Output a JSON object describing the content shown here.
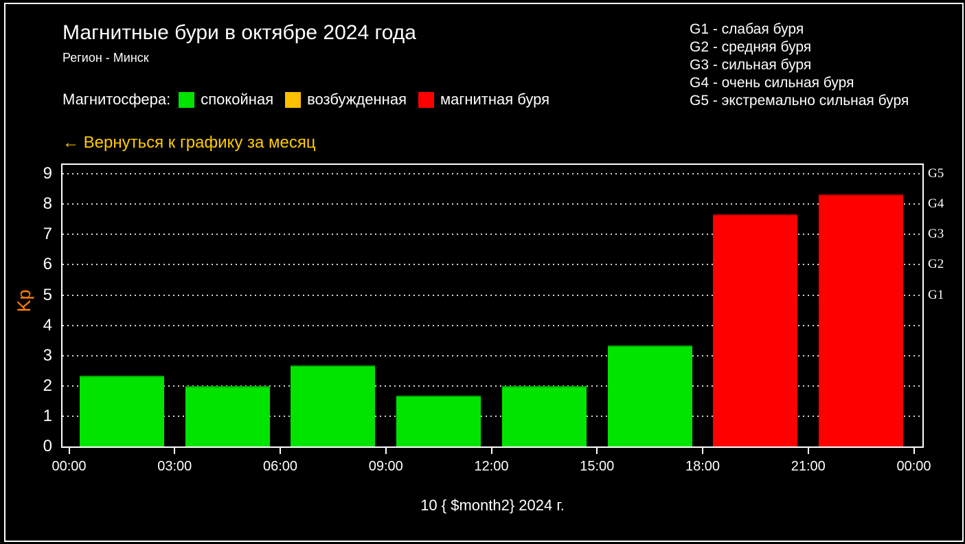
{
  "header": {
    "title": "Магнитные бури в октябре 2024 года",
    "subtitle": "Регион - Минск"
  },
  "storm_scale_legend": [
    "G1 - слабая буря",
    "G2 - средняя буря",
    "G3 - сильная буря",
    "G4 - очень сильная буря",
    "G5 - экстремально сильная буря"
  ],
  "magnetosphere_legend": {
    "label": "Магнитосфера:",
    "items": [
      {
        "label": "спокойная",
        "color": "#00e400"
      },
      {
        "label": "возбужденная",
        "color": "#ffc000"
      },
      {
        "label": "магнитная буря",
        "color": "#ff0000"
      }
    ]
  },
  "back_link": "← Вернуться к графику за месяц",
  "chart_data": {
    "type": "bar",
    "grid": "horizontal dotted",
    "y_axis": {
      "label": "Kp",
      "ticks": [
        0,
        1,
        2,
        3,
        4,
        5,
        6,
        7,
        8,
        9
      ],
      "range": [
        0,
        9.3
      ]
    },
    "x_axis": {
      "tick_labels": [
        "00:00",
        "03:00",
        "06:00",
        "09:00",
        "12:00",
        "15:00",
        "18:00",
        "21:00",
        "00:00"
      ],
      "title": "10 { $month2} 2024 г."
    },
    "right_axis_labels": [
      {
        "label": "G5",
        "kp": 9
      },
      {
        "label": "G4",
        "kp": 8
      },
      {
        "label": "G3",
        "kp": 7
      },
      {
        "label": "G2",
        "kp": 6
      },
      {
        "label": "G1",
        "kp": 5
      }
    ],
    "bars": [
      {
        "interval": "00:00–03:00",
        "value": 2.33,
        "status": "спокойная",
        "color": "#00e400"
      },
      {
        "interval": "03:00–06:00",
        "value": 2.0,
        "status": "спокойная",
        "color": "#00e400"
      },
      {
        "interval": "06:00–09:00",
        "value": 2.67,
        "status": "спокойная",
        "color": "#00e400"
      },
      {
        "interval": "09:00–12:00",
        "value": 1.67,
        "status": "спокойная",
        "color": "#00e400"
      },
      {
        "interval": "12:00–15:00",
        "value": 2.0,
        "status": "спокойная",
        "color": "#00e400"
      },
      {
        "interval": "15:00–18:00",
        "value": 3.33,
        "status": "спокойная",
        "color": "#00e400"
      },
      {
        "interval": "18:00–21:00",
        "value": 7.67,
        "status": "магнитная буря",
        "color": "#ff0000"
      },
      {
        "interval": "21:00–00:00",
        "value": 8.33,
        "status": "магнитная буря",
        "color": "#ff0000"
      }
    ]
  },
  "colors": {
    "background": "#000000",
    "text": "#ffffff",
    "calm_green": "#00e400",
    "excited_orange": "#ffc000",
    "storm_red": "#ff0000",
    "kp_axis_label": "#ff8000",
    "back_link_gold": "#ffcc00"
  }
}
